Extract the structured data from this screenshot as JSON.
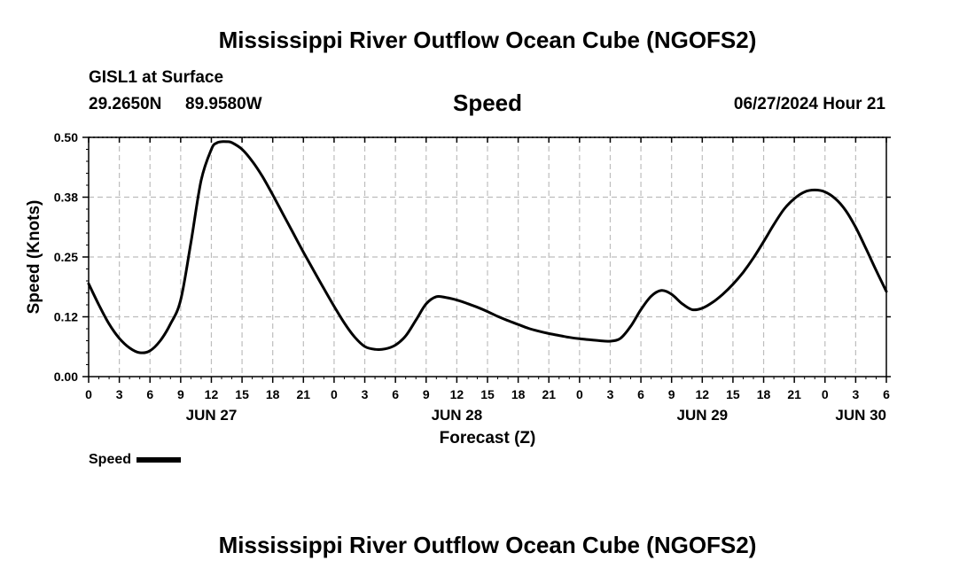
{
  "page": {
    "title": "Mississippi River Outflow Ocean Cube (NGOFS2)",
    "footer_title": "Mississippi River Outflow Ocean Cube (NGOFS2)"
  },
  "header": {
    "station": "GISL1 at Surface",
    "latitude": "29.2650N",
    "longitude": "89.9580W",
    "timestamp": "06/27/2024 Hour 21"
  },
  "chart_data": {
    "type": "line",
    "title": "Speed",
    "xlabel": "Forecast (Z)",
    "ylabel": "Speed (Knots)",
    "ylim": [
      0,
      0.5
    ],
    "xlim": [
      0,
      78
    ],
    "x_unit": "hours from Jun 27 00Z",
    "grid": true,
    "yticks": [
      0,
      0.125,
      0.25,
      0.375,
      0.5
    ],
    "ytick_labels": [
      "0.00",
      "0.12",
      "0.25",
      "0.38",
      "0.50"
    ],
    "xticks": [
      0,
      3,
      6,
      9,
      12,
      15,
      18,
      21,
      24,
      27,
      30,
      33,
      36,
      39,
      42,
      45,
      48,
      51,
      54,
      57,
      60,
      63,
      66,
      69,
      72,
      75,
      78
    ],
    "xtick_labels": [
      "0",
      "3",
      "6",
      "9",
      "12",
      "15",
      "18",
      "21",
      "0",
      "3",
      "6",
      "9",
      "12",
      "15",
      "18",
      "21",
      "0",
      "3",
      "6",
      "9",
      "12",
      "15",
      "18",
      "21",
      "0",
      "3",
      "6"
    ],
    "date_labels": [
      {
        "x": 12,
        "label": "JUN 27"
      },
      {
        "x": 36,
        "label": "JUN 28"
      },
      {
        "x": 60,
        "label": "JUN 29"
      },
      {
        "x": 78,
        "label": "JUN 30"
      }
    ],
    "legend": "bottom-left",
    "series": [
      {
        "name": "Speed",
        "color": "#000000",
        "x": [
          0,
          1,
          2,
          3,
          4,
          5,
          6,
          7,
          8,
          9,
          10,
          11,
          12,
          12.5,
          13,
          13.5,
          14,
          15,
          16,
          17,
          18,
          19,
          20,
          21,
          22,
          23,
          24,
          25,
          26,
          27,
          28,
          29,
          30,
          31,
          32,
          33,
          34,
          35,
          36,
          37,
          38,
          39,
          40,
          41,
          42,
          43,
          44,
          45,
          46,
          47,
          48,
          49,
          50,
          51,
          52,
          53,
          54,
          55,
          56,
          57,
          58,
          59,
          60,
          61,
          62,
          63,
          64,
          65,
          66,
          67,
          68,
          69,
          70,
          71,
          72,
          73,
          74,
          75,
          76,
          77,
          78
        ],
        "values": [
          0.194,
          0.15,
          0.11,
          0.08,
          0.06,
          0.05,
          0.054,
          0.075,
          0.11,
          0.16,
          0.28,
          0.41,
          0.475,
          0.488,
          0.491,
          0.491,
          0.489,
          0.475,
          0.45,
          0.418,
          0.38,
          0.34,
          0.3,
          0.26,
          0.222,
          0.184,
          0.147,
          0.112,
          0.083,
          0.063,
          0.057,
          0.058,
          0.066,
          0.085,
          0.118,
          0.152,
          0.167,
          0.165,
          0.16,
          0.153,
          0.145,
          0.136,
          0.126,
          0.117,
          0.109,
          0.101,
          0.095,
          0.09,
          0.086,
          0.082,
          0.079,
          0.077,
          0.075,
          0.074,
          0.08,
          0.105,
          0.14,
          0.168,
          0.18,
          0.172,
          0.153,
          0.14,
          0.143,
          0.155,
          0.172,
          0.193,
          0.218,
          0.248,
          0.282,
          0.318,
          0.35,
          0.372,
          0.386,
          0.39,
          0.386,
          0.372,
          0.348,
          0.312,
          0.268,
          0.222,
          0.178
        ]
      }
    ]
  }
}
